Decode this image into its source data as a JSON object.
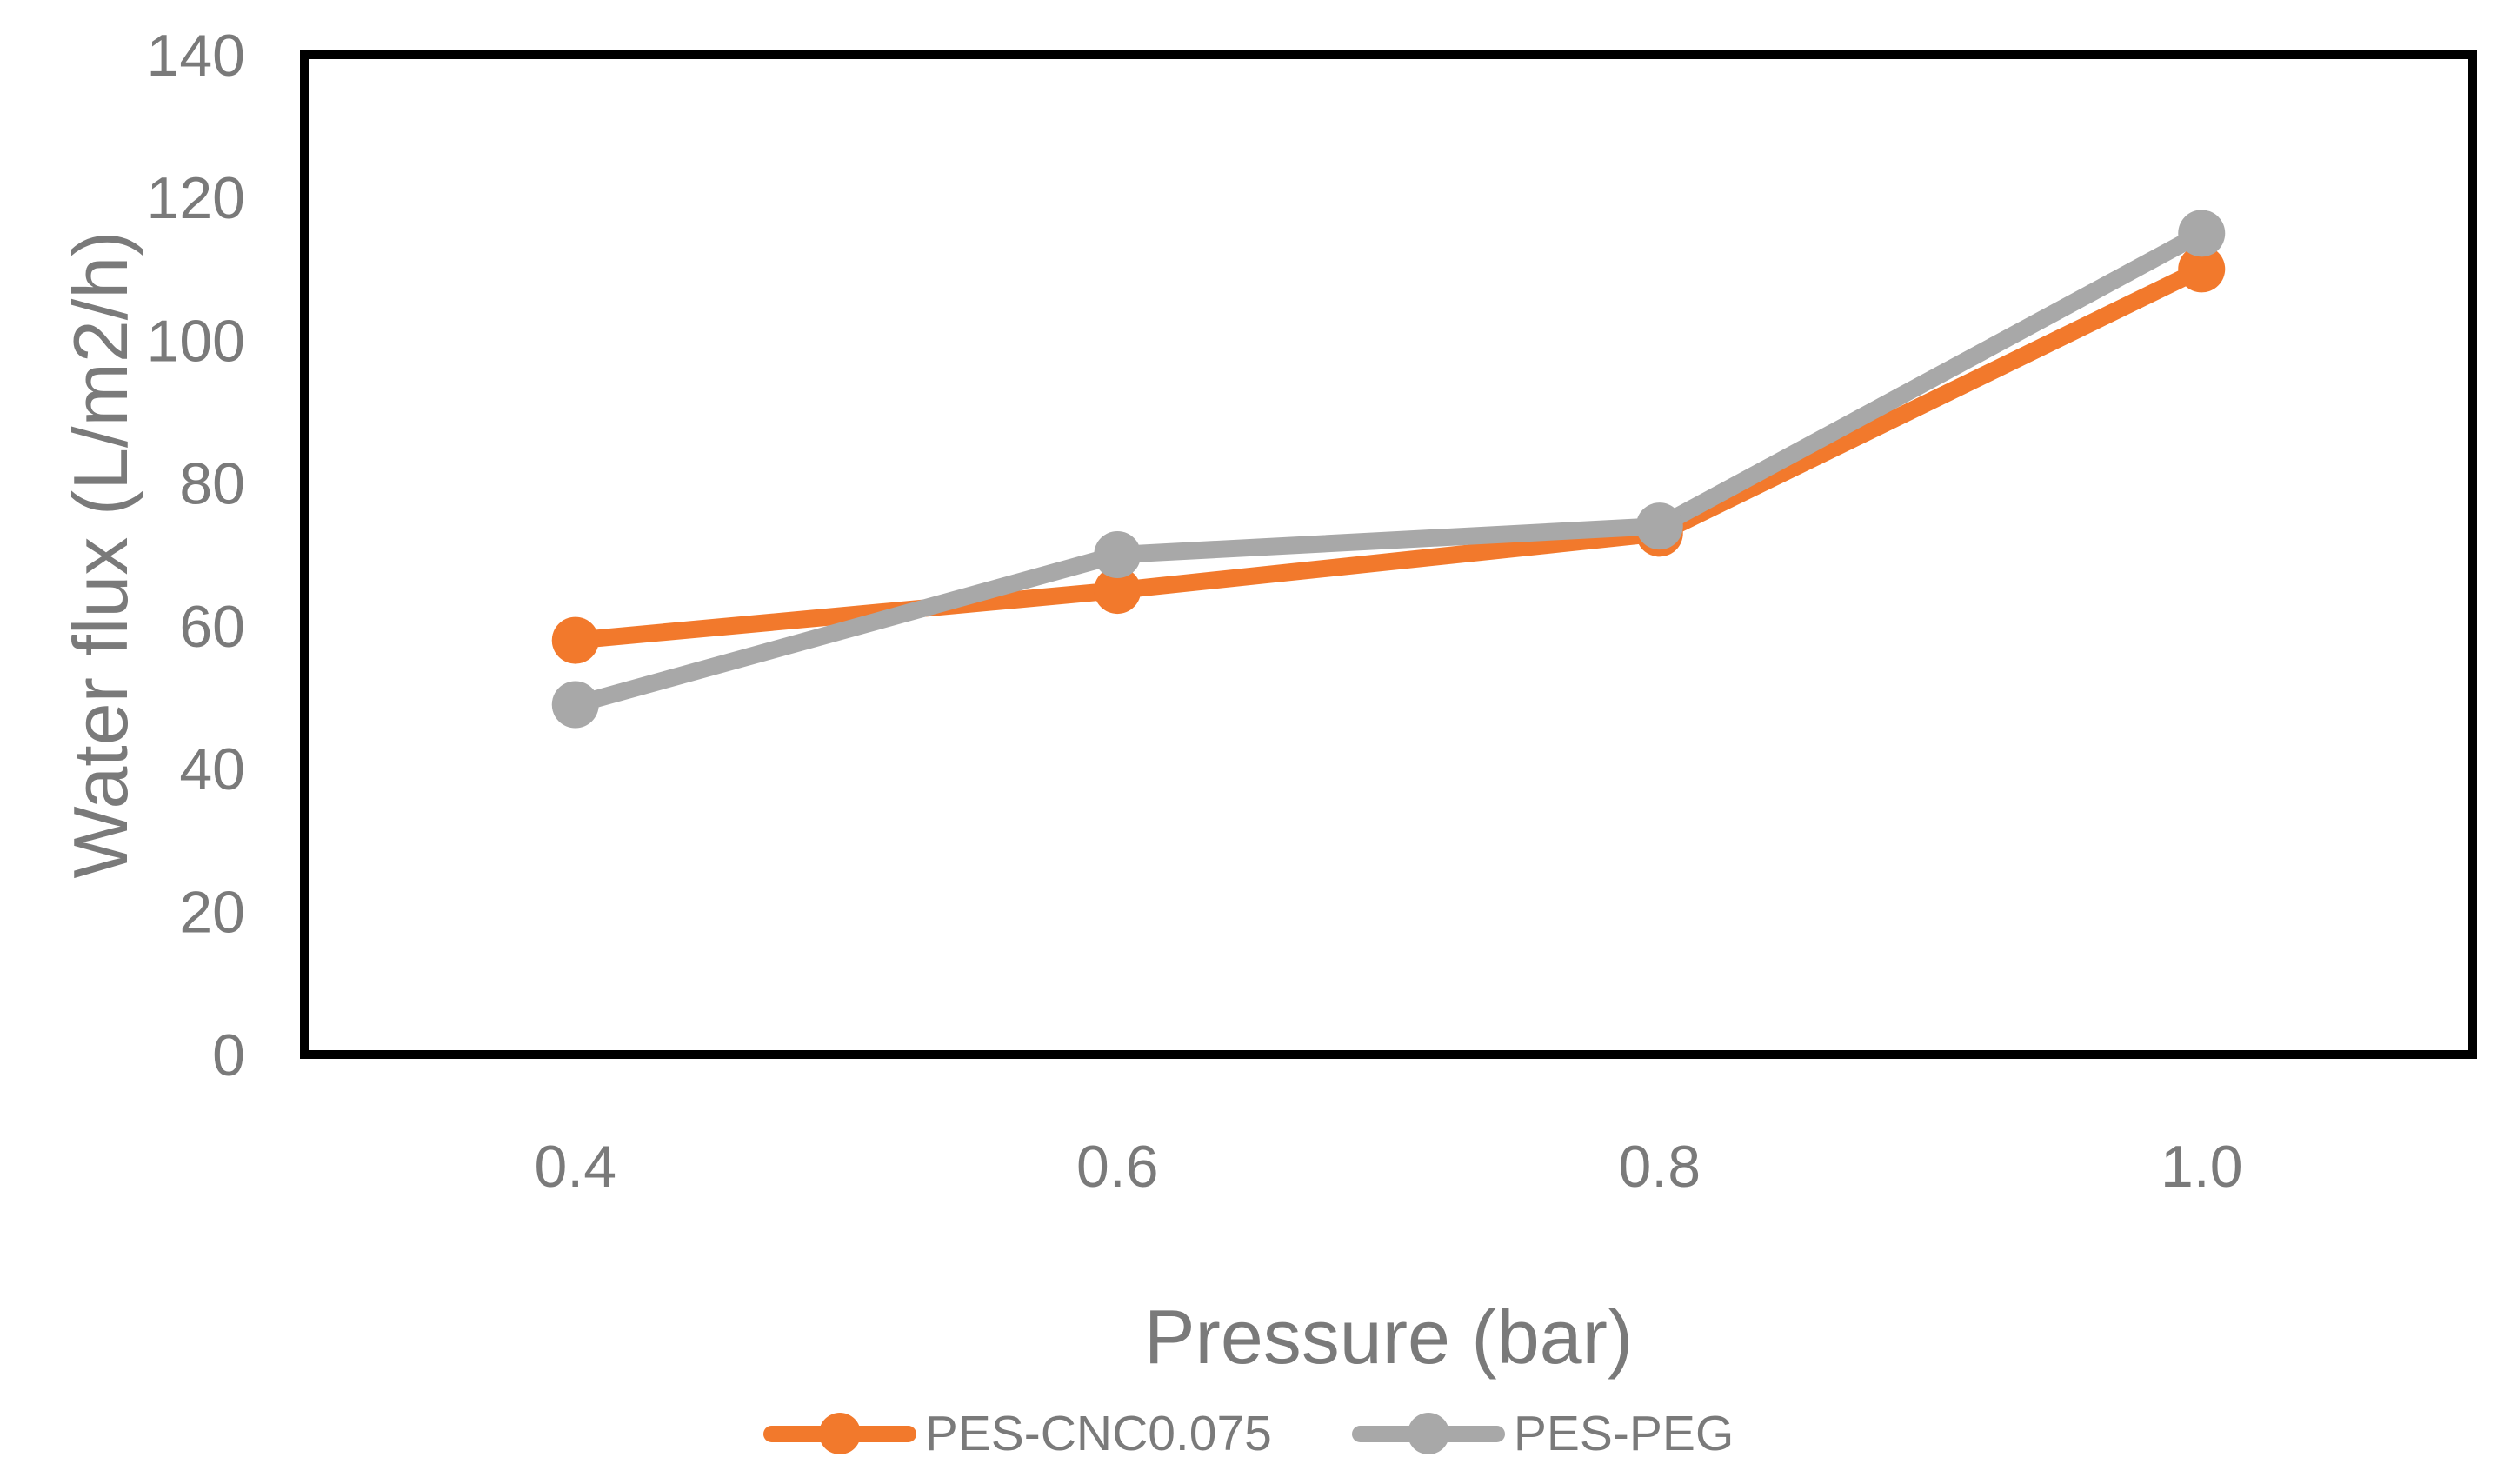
{
  "chart_data": {
    "type": "line",
    "xlabel": "Pressure (bar)",
    "ylabel": "Water flux (L/m2/h)",
    "categories": [
      "0.4",
      "0.6",
      "0.8",
      "1.0"
    ],
    "series": [
      {
        "name": "PES-CNC0.075",
        "color": "#F2792C",
        "values": [
          58,
          65,
          73,
          110
        ]
      },
      {
        "name": "PES-PEG",
        "color": "#A8A8A8",
        "values": [
          49,
          70,
          74,
          115
        ]
      }
    ],
    "ylim": [
      0,
      140
    ],
    "ytick_step": 20,
    "ytick_labels": [
      "0",
      "20",
      "40",
      "60",
      "80",
      "100",
      "120",
      "140"
    ],
    "grid": "off",
    "legend_position": "bottom",
    "marker": "circle",
    "plot_border_color": "#000000",
    "text_color": "#7a7a7a",
    "background_color": "#ffffff"
  }
}
